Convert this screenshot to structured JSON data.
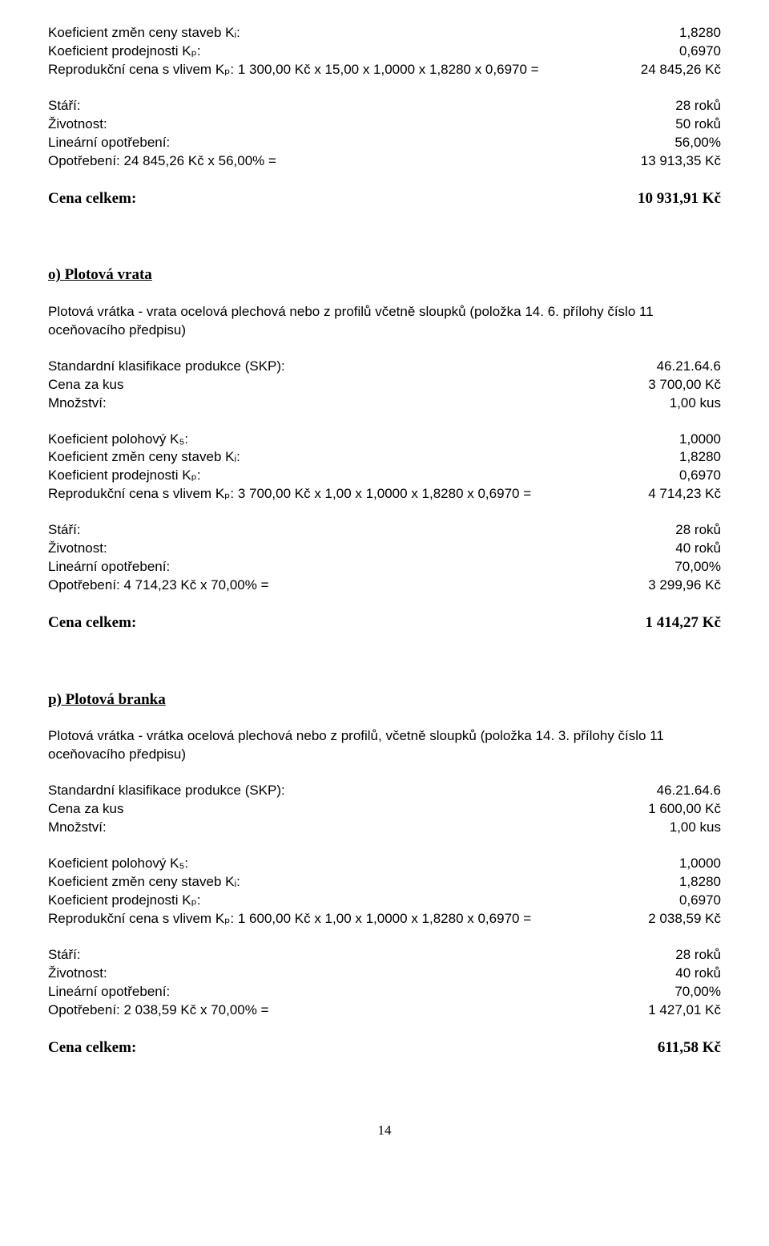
{
  "blockA": {
    "r1": {
      "l": "Koeficient změn ceny staveb Kᵢ:",
      "r": "1,8280"
    },
    "r2": {
      "l": "Koeficient prodejnosti Kₚ:",
      "r": "0,6970"
    },
    "r3": {
      "l": "Reprodukční cena s vlivem Kₚ: 1 300,00 Kč x 15,00 x 1,0000 x 1,8280 x 0,6970 =",
      "r": "24 845,26 Kč"
    },
    "r4": {
      "l": "Stáří:",
      "r": "28 roků"
    },
    "r5": {
      "l": "Životnost:",
      "r": "50 roků"
    },
    "r6": {
      "l": "Lineární opotřebení:",
      "r": "56,00%"
    },
    "r7": {
      "l": "Opotřebení: 24 845,26 Kč x 56,00% =",
      "r": "13 913,35 Kč"
    },
    "total": {
      "l": "Cena celkem:",
      "r": "10 931,91 Kč"
    }
  },
  "sectionO": {
    "title": "o) Plotová vrata",
    "desc": "Plotová vrátka - vrata ocelová plechová nebo z profilů včetně sloupků (položka 14. 6. přílohy číslo 11 oceňovacího předpisu)",
    "r1": {
      "l": "Standardní klasifikace produkce (SKP):",
      "r": "46.21.64.6"
    },
    "r2": {
      "l": "Cena za kus",
      "r": "3 700,00 Kč"
    },
    "r3": {
      "l": "Množství:",
      "r": "1,00 kus"
    },
    "r4": {
      "l": "Koeficient polohový K₅:",
      "r": "1,0000"
    },
    "r5": {
      "l": "Koeficient změn ceny staveb Kᵢ:",
      "r": "1,8280"
    },
    "r6": {
      "l": "Koeficient prodejnosti Kₚ:",
      "r": "0,6970"
    },
    "r7": {
      "l": "Reprodukční cena s vlivem Kₚ: 3 700,00 Kč x 1,00 x 1,0000 x 1,8280 x 0,6970 =",
      "r": "4 714,23 Kč"
    },
    "r8": {
      "l": "Stáří:",
      "r": "28 roků"
    },
    "r9": {
      "l": "Životnost:",
      "r": "40 roků"
    },
    "r10": {
      "l": "Lineární opotřebení:",
      "r": "70,00%"
    },
    "r11": {
      "l": "Opotřebení: 4 714,23 Kč x 70,00% =",
      "r": "3 299,96 Kč"
    },
    "total": {
      "l": "Cena celkem:",
      "r": "1 414,27 Kč"
    }
  },
  "sectionP": {
    "title": "p) Plotová branka",
    "desc": "Plotová vrátka - vrátka ocelová plechová nebo z profilů, včetně sloupků (položka 14. 3. přílohy číslo 11 oceňovacího předpisu)",
    "r1": {
      "l": "Standardní klasifikace produkce (SKP):",
      "r": "46.21.64.6"
    },
    "r2": {
      "l": "Cena za kus",
      "r": "1 600,00 Kč"
    },
    "r3": {
      "l": "Množství:",
      "r": "1,00 kus"
    },
    "r4": {
      "l": "Koeficient polohový K₅:",
      "r": "1,0000"
    },
    "r5": {
      "l": "Koeficient změn ceny staveb Kᵢ:",
      "r": "1,8280"
    },
    "r6": {
      "l": "Koeficient prodejnosti Kₚ:",
      "r": "0,6970"
    },
    "r7": {
      "l": "Reprodukční cena s vlivem Kₚ: 1 600,00 Kč x 1,00 x 1,0000 x 1,8280 x 0,6970 =",
      "r": "2 038,59 Kč"
    },
    "r8": {
      "l": "Stáří:",
      "r": "28 roků"
    },
    "r9": {
      "l": "Životnost:",
      "r": "40 roků"
    },
    "r10": {
      "l": "Lineární opotřebení:",
      "r": "70,00%"
    },
    "r11": {
      "l": "Opotřebení: 2 038,59 Kč x 70,00% =",
      "r": "1 427,01 Kč"
    },
    "total": {
      "l": "Cena celkem:",
      "r": "611,58 Kč"
    }
  },
  "pageNumber": "14"
}
